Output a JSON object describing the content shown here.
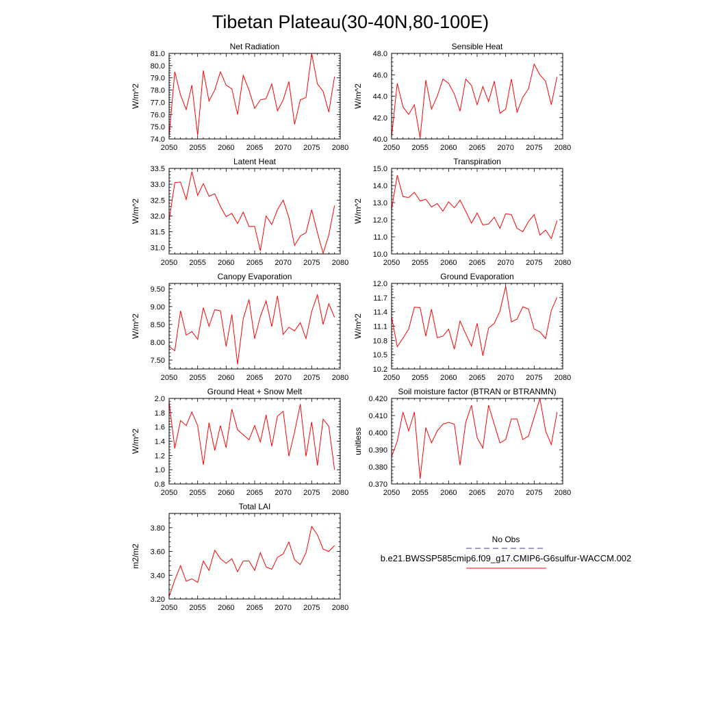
{
  "figure": {
    "title": "Tibetan Plateau(30-40N,80-100E)"
  },
  "legend": {
    "entries": [
      {
        "label": "No Obs",
        "color": "#3b3b8f",
        "dash": "dashed"
      },
      {
        "label": "b.e21.BWSSP585cmip6.f09_g17.CMIP6-G6sulfur-WACCM.002",
        "color": "#ff0000",
        "dash": "solid"
      }
    ]
  },
  "chart_data": [
    {
      "type": "line",
      "title": "Net Radiation",
      "ylabel": "W/m^2",
      "xlim": [
        2050,
        2080
      ],
      "ylim": [
        74.0,
        81.0
      ],
      "xticks": [
        2050,
        2055,
        2060,
        2065,
        2070,
        2075,
        2080
      ],
      "yticks": [
        "74.0",
        "75.0",
        "76.0",
        "77.0",
        "78.0",
        "79.0",
        "80.0",
        "81.0"
      ],
      "x": [
        2050,
        2051,
        2052,
        2053,
        2054,
        2055,
        2056,
        2057,
        2058,
        2059,
        2060,
        2061,
        2062,
        2063,
        2064,
        2065,
        2066,
        2067,
        2068,
        2069,
        2070,
        2071,
        2072,
        2073,
        2074,
        2075,
        2076,
        2077,
        2078,
        2079
      ],
      "series": [
        {
          "color": "#ff0000",
          "values": [
            74.2,
            79.5,
            77.6,
            76.4,
            78.4,
            74.3,
            79.6,
            77.1,
            78.0,
            79.5,
            78.4,
            78.1,
            76.0,
            79.2,
            78.0,
            76.5,
            77.2,
            77.3,
            78.5,
            76.3,
            77.2,
            78.7,
            75.2,
            77.2,
            77.4,
            81.0,
            78.5,
            77.9,
            76.2,
            79.1
          ]
        }
      ]
    },
    {
      "type": "line",
      "title": "Sensible Heat",
      "ylabel": "W/m^2",
      "xlim": [
        2050,
        2080
      ],
      "ylim": [
        40.0,
        48.0
      ],
      "xticks": [
        2050,
        2055,
        2060,
        2065,
        2070,
        2075,
        2080
      ],
      "yticks": [
        "40.0",
        "42.0",
        "44.0",
        "46.0",
        "48.0"
      ],
      "x": [
        2050,
        2051,
        2052,
        2053,
        2054,
        2055,
        2056,
        2057,
        2058,
        2059,
        2060,
        2061,
        2062,
        2063,
        2064,
        2065,
        2066,
        2067,
        2068,
        2069,
        2070,
        2071,
        2072,
        2073,
        2074,
        2075,
        2076,
        2077,
        2078,
        2079
      ],
      "series": [
        {
          "color": "#ff0000",
          "values": [
            40.2,
            45.2,
            43.0,
            42.3,
            43.2,
            40.1,
            45.5,
            42.8,
            44.0,
            45.6,
            45.2,
            44.2,
            42.6,
            45.6,
            45.0,
            43.2,
            44.9,
            43.5,
            45.4,
            42.4,
            42.8,
            45.6,
            42.5,
            43.9,
            44.7,
            47.0,
            46.0,
            45.4,
            43.2,
            45.8
          ]
        }
      ]
    },
    {
      "type": "line",
      "title": "Latent Heat",
      "ylabel": "W/m^2",
      "xlim": [
        2050,
        2080
      ],
      "ylim": [
        30.8,
        33.5
      ],
      "xticks": [
        2050,
        2055,
        2060,
        2065,
        2070,
        2075,
        2080
      ],
      "yticks": [
        "31.0",
        "31.5",
        "32.0",
        "32.5",
        "33.0",
        "33.5"
      ],
      "x": [
        2050,
        2051,
        2052,
        2053,
        2054,
        2055,
        2056,
        2057,
        2058,
        2059,
        2060,
        2061,
        2062,
        2063,
        2064,
        2065,
        2066,
        2067,
        2068,
        2069,
        2070,
        2071,
        2072,
        2073,
        2074,
        2075,
        2076,
        2077,
        2078,
        2079
      ],
      "series": [
        {
          "color": "#ff0000",
          "values": [
            31.85,
            33.05,
            33.07,
            32.52,
            33.4,
            32.65,
            33.02,
            32.62,
            32.7,
            32.3,
            31.98,
            32.08,
            31.76,
            32.12,
            31.67,
            31.67,
            30.9,
            32.0,
            31.73,
            32.2,
            32.5,
            31.95,
            31.07,
            31.37,
            31.47,
            32.2,
            31.47,
            30.82,
            31.4,
            32.33
          ]
        }
      ]
    },
    {
      "type": "line",
      "title": "Transpiration",
      "ylabel": "W/m^2",
      "xlim": [
        2050,
        2080
      ],
      "ylim": [
        10.0,
        15.0
      ],
      "xticks": [
        2050,
        2055,
        2060,
        2065,
        2070,
        2075,
        2080
      ],
      "yticks": [
        "10.0",
        "11.0",
        "12.0",
        "13.0",
        "14.0",
        "15.0"
      ],
      "x": [
        2050,
        2051,
        2052,
        2053,
        2054,
        2055,
        2056,
        2057,
        2058,
        2059,
        2060,
        2061,
        2062,
        2063,
        2064,
        2065,
        2066,
        2067,
        2068,
        2069,
        2070,
        2071,
        2072,
        2073,
        2074,
        2075,
        2076,
        2077,
        2078,
        2079
      ],
      "series": [
        {
          "color": "#ff0000",
          "values": [
            12.6,
            14.6,
            13.35,
            13.3,
            13.6,
            13.1,
            13.2,
            12.75,
            12.95,
            12.5,
            13.05,
            12.7,
            13.15,
            12.5,
            11.8,
            12.4,
            11.7,
            11.75,
            12.15,
            11.5,
            12.35,
            12.3,
            11.5,
            11.3,
            11.9,
            12.3,
            11.1,
            11.4,
            10.9,
            11.95
          ]
        }
      ]
    },
    {
      "type": "line",
      "title": "Canopy Evaporation",
      "ylabel": "W/m^2",
      "xlim": [
        2050,
        2080
      ],
      "ylim": [
        7.25,
        9.65
      ],
      "xticks": [
        2050,
        2055,
        2060,
        2065,
        2070,
        2075,
        2080
      ],
      "yticks": [
        "7.50",
        "8.00",
        "8.50",
        "9.00",
        "9.50"
      ],
      "x": [
        2050,
        2051,
        2052,
        2053,
        2054,
        2055,
        2056,
        2057,
        2058,
        2059,
        2060,
        2061,
        2062,
        2063,
        2064,
        2065,
        2066,
        2067,
        2068,
        2069,
        2070,
        2071,
        2072,
        2073,
        2074,
        2075,
        2076,
        2077,
        2078,
        2079
      ],
      "series": [
        {
          "color": "#ff0000",
          "values": [
            7.88,
            7.76,
            8.88,
            8.2,
            8.3,
            8.08,
            8.97,
            8.45,
            8.91,
            8.88,
            7.88,
            8.78,
            7.38,
            8.66,
            9.2,
            8.1,
            8.72,
            9.16,
            8.44,
            9.3,
            8.22,
            8.42,
            8.32,
            8.55,
            8.1,
            8.86,
            9.33,
            8.5,
            9.08,
            8.7
          ]
        }
      ]
    },
    {
      "type": "line",
      "title": "Ground Evaporation",
      "ylabel": "W/m^2",
      "xlim": [
        2050,
        2080
      ],
      "ylim": [
        10.2,
        12.0
      ],
      "xticks": [
        2050,
        2055,
        2060,
        2065,
        2070,
        2075,
        2080
      ],
      "yticks": [
        "10.2",
        "10.5",
        "10.8",
        "11.1",
        "11.4",
        "11.7",
        "12.0"
      ],
      "x": [
        2050,
        2051,
        2052,
        2053,
        2054,
        2055,
        2056,
        2057,
        2058,
        2059,
        2060,
        2061,
        2062,
        2063,
        2064,
        2065,
        2066,
        2067,
        2068,
        2069,
        2070,
        2071,
        2072,
        2073,
        2074,
        2075,
        2076,
        2077,
        2078,
        2079
      ],
      "series": [
        {
          "color": "#ff0000",
          "values": [
            11.3,
            10.67,
            10.85,
            11.04,
            11.5,
            11.49,
            10.89,
            11.46,
            10.86,
            10.89,
            11.04,
            10.62,
            11.21,
            10.94,
            10.68,
            11.16,
            10.48,
            11.06,
            11.16,
            11.42,
            11.94,
            11.19,
            11.25,
            11.51,
            11.46,
            11.04,
            10.98,
            10.84,
            11.43,
            11.71
          ]
        }
      ]
    },
    {
      "type": "line",
      "title": "Ground Heat + Snow Melt",
      "ylabel": "W/m^2",
      "xlim": [
        2050,
        2080
      ],
      "ylim": [
        0.8,
        2.0
      ],
      "xticks": [
        2050,
        2055,
        2060,
        2065,
        2070,
        2075,
        2080
      ],
      "yticks": [
        "0.8",
        "1.0",
        "1.2",
        "1.4",
        "1.6",
        "1.8",
        "2.0"
      ],
      "x": [
        2050,
        2051,
        2052,
        2053,
        2054,
        2055,
        2056,
        2057,
        2058,
        2059,
        2060,
        2061,
        2062,
        2063,
        2064,
        2065,
        2066,
        2067,
        2068,
        2069,
        2070,
        2071,
        2072,
        2073,
        2074,
        2075,
        2076,
        2077,
        2078,
        2079
      ],
      "series": [
        {
          "color": "#ff0000",
          "values": [
            1.95,
            1.3,
            1.69,
            1.62,
            1.81,
            1.62,
            1.07,
            1.66,
            1.27,
            1.62,
            1.31,
            1.85,
            1.56,
            1.49,
            1.42,
            1.62,
            1.39,
            1.77,
            1.33,
            1.75,
            1.82,
            1.19,
            1.53,
            1.92,
            1.19,
            1.67,
            1.06,
            1.71,
            1.61,
            1.0
          ]
        }
      ]
    },
    {
      "type": "line",
      "title": "Soil moisture factor (BTRAN or BTRANMN)",
      "ylabel": "unitless",
      "xlim": [
        2050,
        2080
      ],
      "ylim": [
        0.37,
        0.42
      ],
      "xticks": [
        2050,
        2055,
        2060,
        2065,
        2070,
        2075,
        2080
      ],
      "yticks": [
        "0.370",
        "0.380",
        "0.390",
        "0.400",
        "0.410",
        "0.420"
      ],
      "x": [
        2050,
        2051,
        2052,
        2053,
        2054,
        2055,
        2056,
        2057,
        2058,
        2059,
        2060,
        2061,
        2062,
        2063,
        2064,
        2065,
        2066,
        2067,
        2068,
        2069,
        2070,
        2071,
        2072,
        2073,
        2074,
        2075,
        2076,
        2077,
        2078,
        2079
      ],
      "series": [
        {
          "color": "#ff0000",
          "values": [
            0.386,
            0.395,
            0.412,
            0.401,
            0.412,
            0.373,
            0.403,
            0.394,
            0.401,
            0.405,
            0.406,
            0.405,
            0.381,
            0.406,
            0.416,
            0.397,
            0.391,
            0.416,
            0.405,
            0.394,
            0.396,
            0.408,
            0.408,
            0.396,
            0.398,
            0.409,
            0.42,
            0.401,
            0.393,
            0.412
          ]
        }
      ]
    },
    {
      "type": "line",
      "title": "Total LAI",
      "ylabel": "m2/m2",
      "xlim": [
        2050,
        2080
      ],
      "ylim": [
        3.2,
        3.92
      ],
      "xticks": [
        2050,
        2055,
        2060,
        2065,
        2070,
        2075,
        2080
      ],
      "yticks": [
        "3.20",
        "3.40",
        "3.60",
        "3.80"
      ],
      "x": [
        2050,
        2051,
        2052,
        2053,
        2054,
        2055,
        2056,
        2057,
        2058,
        2059,
        2060,
        2061,
        2062,
        2063,
        2064,
        2065,
        2066,
        2067,
        2068,
        2069,
        2070,
        2071,
        2072,
        2073,
        2074,
        2075,
        2076,
        2077,
        2078,
        2079
      ],
      "series": [
        {
          "color": "#ff0000",
          "values": [
            3.22,
            3.36,
            3.48,
            3.35,
            3.37,
            3.34,
            3.52,
            3.44,
            3.61,
            3.54,
            3.5,
            3.54,
            3.43,
            3.52,
            3.52,
            3.44,
            3.59,
            3.47,
            3.45,
            3.55,
            3.58,
            3.68,
            3.53,
            3.49,
            3.59,
            3.81,
            3.74,
            3.62,
            3.6,
            3.65
          ]
        }
      ]
    }
  ]
}
